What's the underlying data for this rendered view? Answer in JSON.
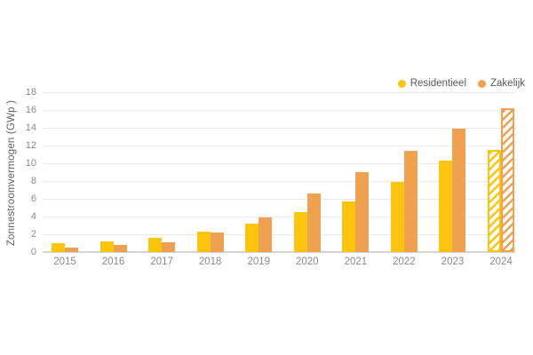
{
  "colors": {
    "bg": "#FFFFFF",
    "grid": "#E8E9EA",
    "baseline": "#D3D4D6",
    "ticks": "#87898C",
    "ylabel": "#5F6163",
    "legend": "#55575A",
    "residentieel": "#FDC40F",
    "zakelijk": "#F0A150"
  },
  "legend": {
    "items": [
      {
        "label": "Residentieel",
        "color": "#FDC40F",
        "swatch": "circle"
      },
      {
        "label": "Zakelijk",
        "color": "#F0A150",
        "swatch": "circle"
      }
    ]
  },
  "chart_data": {
    "type": "bar",
    "title": "",
    "xlabel": "",
    "ylabel": "Zonnestroomvermogen (GWp )",
    "categories": [
      "2015",
      "2016",
      "2017",
      "2018",
      "2019",
      "2020",
      "2021",
      "2022",
      "2023",
      "2024"
    ],
    "series": [
      {
        "name": "Residentieel",
        "color": "#FDC40F",
        "values": [
          1.0,
          1.2,
          1.6,
          2.3,
          3.2,
          4.5,
          5.7,
          7.9,
          10.3,
          11.5
        ]
      },
      {
        "name": "Zakelijk",
        "color": "#F0A150",
        "values": [
          0.5,
          0.8,
          1.1,
          2.2,
          3.9,
          6.6,
          9.0,
          11.4,
          13.9,
          16.2
        ]
      }
    ],
    "ylim": [
      0,
      18
    ],
    "yticks": [
      0,
      2,
      4,
      6,
      8,
      10,
      12,
      14,
      16,
      18
    ],
    "grid": true,
    "legend_position": "top-right",
    "hatched_categories": [
      "2024"
    ]
  }
}
